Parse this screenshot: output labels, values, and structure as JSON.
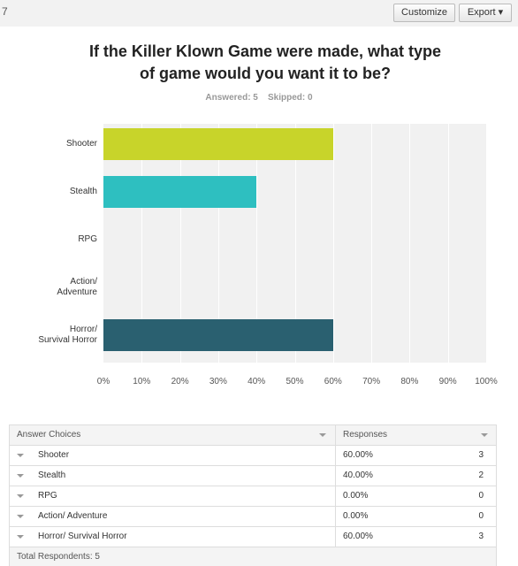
{
  "toolbar": {
    "number": "7",
    "buttons": [
      "Customize",
      "Export"
    ]
  },
  "question": {
    "title": "If the Killer Klown Game were made, what type of game would you want it to be?",
    "answered": "Answered: 5",
    "skipped": "Skipped: 0"
  },
  "chart_data": {
    "type": "bar",
    "orientation": "horizontal",
    "categories": [
      "Shooter",
      "Stealth",
      "RPG",
      "Action/\nAdventure",
      "Horror/\nSurvival Horror"
    ],
    "values": [
      60,
      40,
      0,
      0,
      60
    ],
    "colors": [
      "#c8d42a",
      "#2ebfc0",
      "#f05b4f",
      "#7a5aa6",
      "#2a6070"
    ],
    "xlim": [
      0,
      100
    ],
    "xticks": [
      {
        "value": 0,
        "label": "0%"
      },
      {
        "value": 10,
        "label": "10%"
      },
      {
        "value": 20,
        "label": "20%"
      },
      {
        "value": 30,
        "label": "30%"
      },
      {
        "value": 40,
        "label": "40%"
      },
      {
        "value": 50,
        "label": "50%"
      },
      {
        "value": 60,
        "label": "60%"
      },
      {
        "value": 70,
        "label": "70%"
      },
      {
        "value": 80,
        "label": "80%"
      },
      {
        "value": 90,
        "label": "90%"
      },
      {
        "value": 100,
        "label": "100%"
      }
    ],
    "grid": true
  },
  "table": {
    "header": [
      "Answer Choices",
      "Responses"
    ],
    "rows": [
      [
        "Shooter",
        "60.00%",
        "3"
      ],
      [
        "Stealth",
        "40.00%",
        "2"
      ],
      [
        "RPG",
        "0.00%",
        "0"
      ],
      [
        "Action/ Adventure",
        "0.00%",
        "0"
      ],
      [
        "Horror/ Survival Horror",
        "60.00%",
        "3"
      ]
    ],
    "footer": "Total Respondents: 5"
  }
}
